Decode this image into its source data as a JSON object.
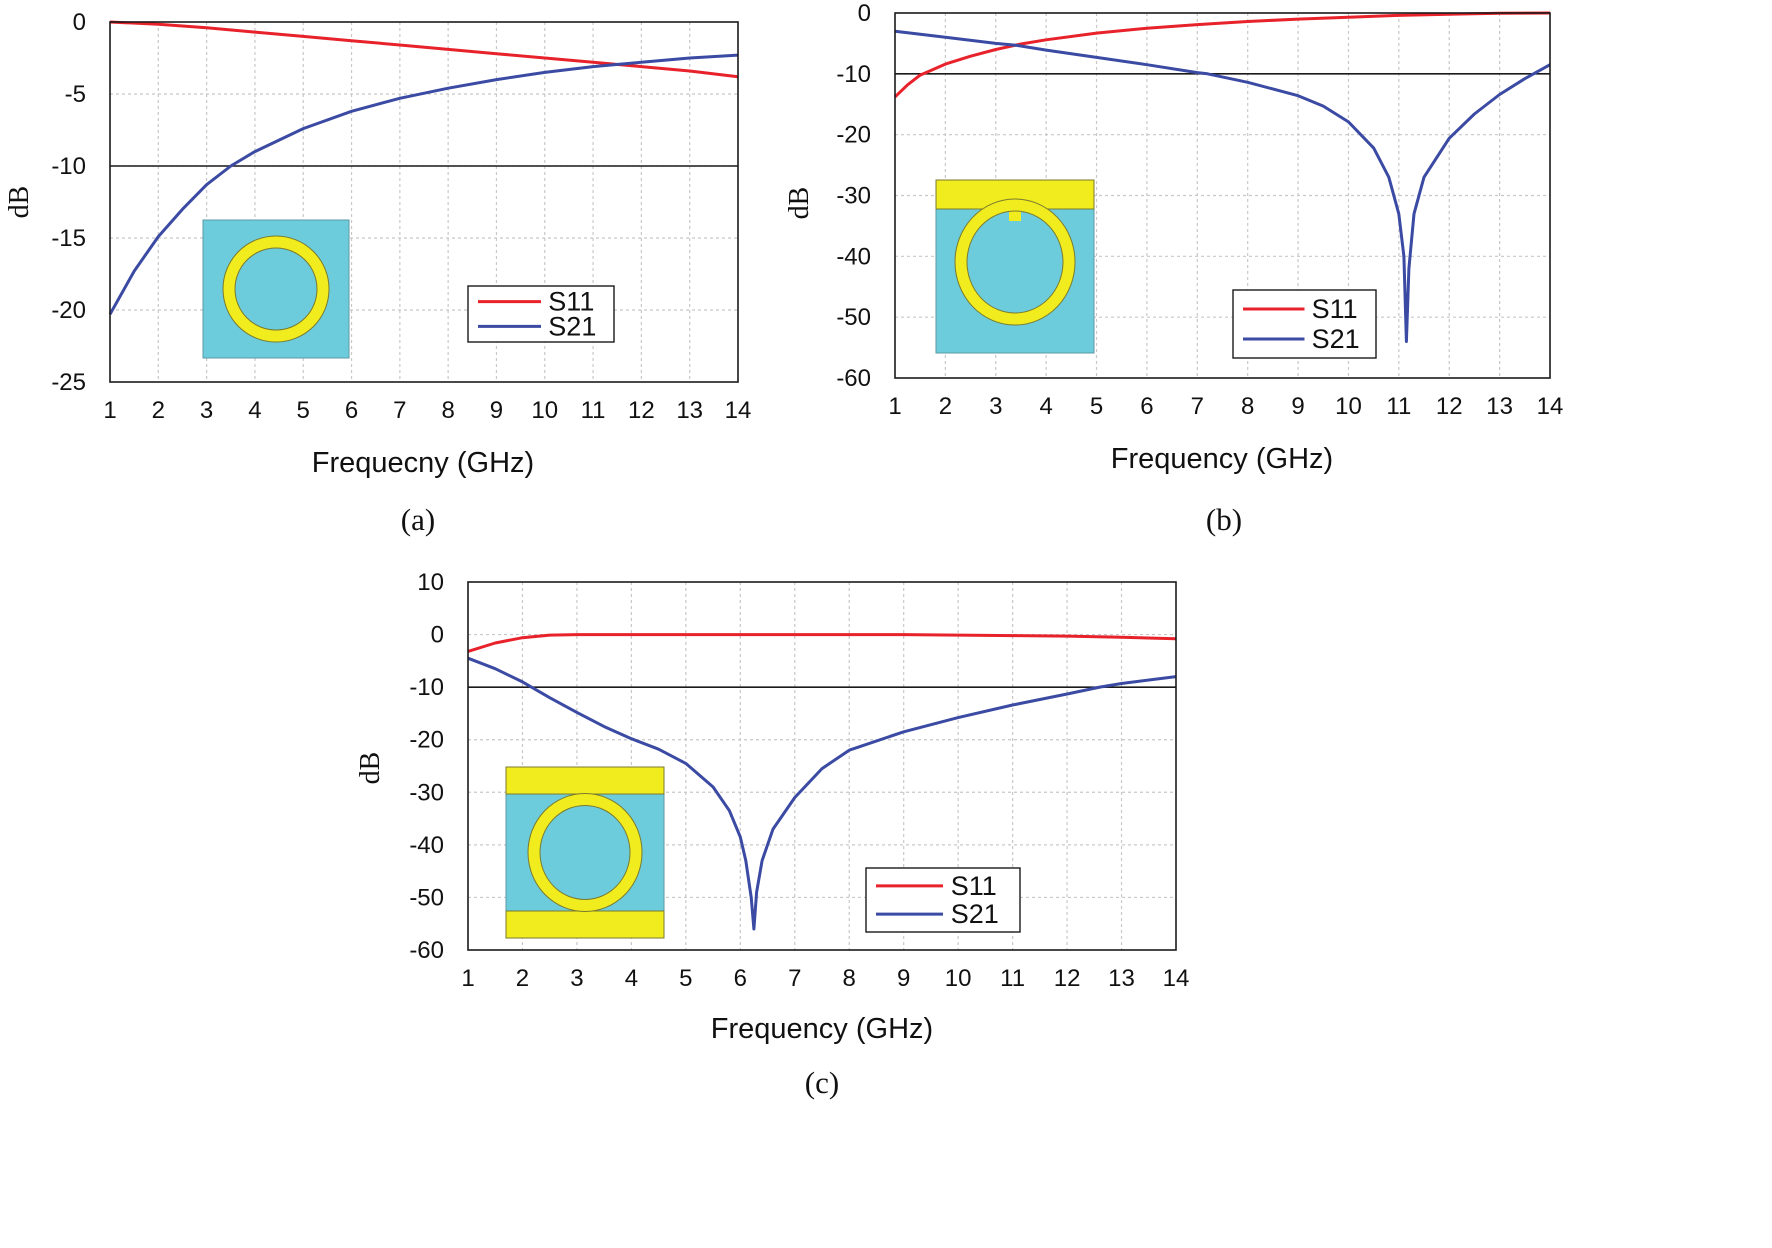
{
  "figure": {
    "colors": {
      "s11": "#e8222b",
      "s21": "#3b4aa3",
      "ref_line": "#1a1a1a",
      "grid": "#c8c8c8",
      "substrate": "#6cccdb",
      "metal": "#f1ec1e",
      "metal_edge": "#7a7a30"
    }
  },
  "chart_data": [
    {
      "id": "a",
      "type": "line",
      "caption": "(a)",
      "xlabel": "Frequecny (GHz)",
      "ylabel": "dB",
      "xlim": [
        1,
        14
      ],
      "ylim": [
        -25,
        0
      ],
      "x_ticks": [
        1,
        2,
        3,
        4,
        5,
        6,
        7,
        8,
        9,
        10,
        11,
        12,
        13,
        14
      ],
      "y_ticks": [
        0,
        -5,
        -10,
        -15,
        -20,
        -25
      ],
      "x_tick_labels": [
        "1",
        "2",
        "3",
        "4",
        "5",
        "6",
        "7",
        "8",
        "9",
        "10",
        "11",
        "12",
        "13",
        "14"
      ],
      "y_tick_labels": [
        "0",
        "-5",
        "-10",
        "-15",
        "-20",
        "-25"
      ],
      "reference_line": -10,
      "legend": [
        "S11",
        "S21"
      ],
      "legend_position": "center-right",
      "inset": "ring",
      "series": [
        {
          "name": "S11",
          "x": [
            1,
            2,
            3,
            4,
            5,
            6,
            7,
            8,
            9,
            10,
            11,
            12,
            13,
            14
          ],
          "y": [
            0,
            -0.15,
            -0.4,
            -0.7,
            -1.0,
            -1.3,
            -1.6,
            -1.9,
            -2.2,
            -2.5,
            -2.8,
            -3.1,
            -3.4,
            -3.8
          ]
        },
        {
          "name": "S21",
          "x": [
            1,
            1.5,
            2,
            2.5,
            3,
            3.5,
            4,
            5,
            6,
            7,
            8,
            9,
            10,
            11,
            12,
            13,
            14
          ],
          "y": [
            -20.3,
            -17.3,
            -14.9,
            -13.0,
            -11.3,
            -10.0,
            -9.0,
            -7.4,
            -6.2,
            -5.3,
            -4.6,
            -4.0,
            -3.5,
            -3.1,
            -2.8,
            -2.5,
            -2.3
          ]
        }
      ]
    },
    {
      "id": "b",
      "type": "line",
      "caption": "(b)",
      "xlabel": "Frequency (GHz)",
      "ylabel": "dB",
      "xlim": [
        1,
        14
      ],
      "ylim": [
        -60,
        0
      ],
      "x_ticks": [
        1,
        2,
        3,
        4,
        5,
        6,
        7,
        8,
        9,
        10,
        11,
        12,
        13,
        14
      ],
      "y_ticks": [
        0,
        -10,
        -20,
        -30,
        -40,
        -50,
        -60
      ],
      "x_tick_labels": [
        "1",
        "2",
        "3",
        "4",
        "5",
        "6",
        "7",
        "8",
        "9",
        "10",
        "11",
        "12",
        "13",
        "14"
      ],
      "y_tick_labels": [
        "0",
        "-10",
        "-20",
        "-30",
        "-40",
        "-50",
        "-60"
      ],
      "reference_line": -10,
      "legend": [
        "S11",
        "S21"
      ],
      "legend_position": "lower-right",
      "inset": "ring-top-strip",
      "series": [
        {
          "name": "S11",
          "x": [
            1,
            1.25,
            1.5,
            2,
            2.5,
            3,
            3.5,
            4,
            5,
            6,
            7,
            8,
            9,
            10,
            11,
            12,
            13,
            14
          ],
          "y": [
            -13.8,
            -11.8,
            -10.2,
            -8.4,
            -7.1,
            -6.0,
            -5.1,
            -4.4,
            -3.3,
            -2.5,
            -1.9,
            -1.4,
            -1.0,
            -0.7,
            -0.4,
            -0.2,
            -0.05,
            0
          ]
        },
        {
          "name": "S21",
          "x": [
            1,
            2,
            3,
            3.4,
            4,
            5,
            6,
            7,
            7.2,
            8,
            9,
            9.5,
            10,
            10.5,
            10.8,
            11,
            11.1,
            11.15,
            11.2,
            11.3,
            11.5,
            12,
            12.5,
            13,
            13.5,
            14
          ],
          "y": [
            -3.0,
            -4.0,
            -5.0,
            -5.3,
            -6.1,
            -7.3,
            -8.5,
            -9.8,
            -10.0,
            -11.4,
            -13.6,
            -15.3,
            -17.9,
            -22.2,
            -27.0,
            -33.0,
            -40.0,
            -54.0,
            -42.0,
            -33.0,
            -27.0,
            -20.6,
            -16.6,
            -13.4,
            -10.8,
            -8.5
          ]
        }
      ]
    },
    {
      "id": "c",
      "type": "line",
      "caption": "(c)",
      "xlabel": "Frequency (GHz)",
      "ylabel": "dB",
      "xlim": [
        1,
        14
      ],
      "ylim": [
        -60,
        10
      ],
      "x_ticks": [
        1,
        2,
        3,
        4,
        5,
        6,
        7,
        8,
        9,
        10,
        11,
        12,
        13,
        14
      ],
      "y_ticks": [
        10,
        0,
        -10,
        -20,
        -30,
        -40,
        -50,
        -60
      ],
      "x_tick_labels": [
        "1",
        "2",
        "3",
        "4",
        "5",
        "6",
        "7",
        "8",
        "9",
        "10",
        "11",
        "12",
        "13",
        "14"
      ],
      "y_tick_labels": [
        "10",
        "0",
        "-10",
        "-20",
        "-30",
        "-40",
        "-50",
        "-60"
      ],
      "reference_line": -10,
      "legend": [
        "S11",
        "S21"
      ],
      "legend_position": "lower-right",
      "inset": "ring-two-strips",
      "series": [
        {
          "name": "S11",
          "x": [
            1,
            1.5,
            2,
            2.5,
            3,
            4,
            5,
            6,
            7,
            8,
            9,
            10,
            11,
            12,
            13,
            14
          ],
          "y": [
            -3.2,
            -1.6,
            -0.6,
            -0.1,
            0,
            0,
            0,
            0,
            0,
            0,
            0,
            -0.1,
            -0.2,
            -0.3,
            -0.5,
            -0.8
          ]
        },
        {
          "name": "S21",
          "x": [
            1,
            1.5,
            2,
            2.5,
            3,
            3.5,
            4,
            4.5,
            5,
            5.5,
            5.8,
            6.0,
            6.1,
            6.2,
            6.25,
            6.3,
            6.4,
            6.6,
            7,
            7.5,
            8,
            9,
            10,
            11,
            12,
            12.6,
            13,
            14
          ],
          "y": [
            -4.5,
            -6.5,
            -9.0,
            -12.0,
            -14.8,
            -17.5,
            -19.8,
            -21.8,
            -24.5,
            -29.0,
            -33.5,
            -38.5,
            -43.0,
            -50.0,
            -56.0,
            -49.0,
            -43.0,
            -37.0,
            -31.0,
            -25.5,
            -22.0,
            -18.5,
            -15.8,
            -13.4,
            -11.3,
            -10.0,
            -9.3,
            -8.0
          ]
        }
      ]
    }
  ]
}
